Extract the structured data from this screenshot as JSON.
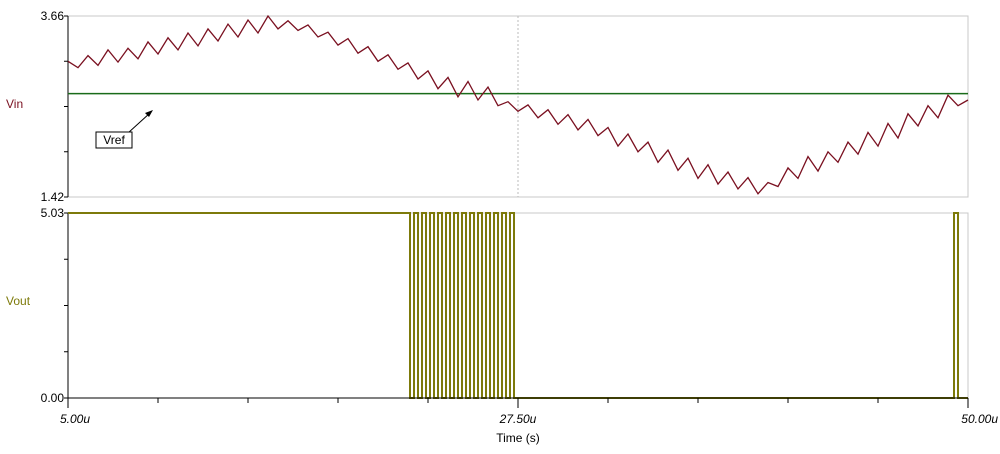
{
  "chart_data": [
    {
      "type": "line",
      "ylabel": "Vin",
      "ylim": [
        1.42,
        3.66
      ],
      "xlim": [
        5.0,
        50.0
      ],
      "x_unit": "u",
      "grid": "x-ticks only, dashed vertical marker at 27.50u",
      "y_tick_labels": [
        "3.66",
        "1.42"
      ],
      "colors": {
        "vin": "#7a1020",
        "vref": "#1a6b1a"
      },
      "series": [
        {
          "x": [
            5.0,
            5.5,
            6.0,
            6.5,
            7.0,
            7.5,
            8.0,
            8.5,
            9.0,
            9.5,
            10.0,
            10.5,
            11.0,
            11.5,
            12.0,
            12.5,
            13.0,
            13.5,
            14.0,
            14.5,
            15.0,
            15.5,
            16.0,
            16.5,
            17.0,
            17.5,
            18.0,
            18.5,
            19.0,
            19.5,
            20.0,
            20.5,
            21.0,
            21.5,
            22.0,
            22.5,
            23.0,
            23.5,
            24.0,
            24.5,
            25.0,
            25.5,
            26.0,
            26.5,
            27.0,
            27.5,
            28.0,
            28.5,
            29.0,
            29.5,
            30.0,
            30.5,
            31.0,
            31.5,
            32.0,
            32.5,
            33.0,
            33.5,
            34.0,
            34.5,
            35.0,
            35.5,
            36.0,
            36.5,
            37.0,
            37.5,
            38.0,
            38.5,
            39.0,
            39.5,
            40.0,
            40.5,
            41.0,
            41.5,
            42.0,
            42.5,
            43.0,
            43.5,
            44.0,
            44.5,
            45.0,
            45.5,
            46.0,
            46.5,
            47.0,
            47.5,
            48.0,
            48.5,
            49.0,
            49.5,
            50.0
          ],
          "values": [
            3.1,
            3.02,
            3.17,
            3.05,
            3.24,
            3.09,
            3.26,
            3.13,
            3.34,
            3.19,
            3.39,
            3.24,
            3.45,
            3.29,
            3.5,
            3.35,
            3.56,
            3.4,
            3.61,
            3.45,
            3.66,
            3.5,
            3.6,
            3.48,
            3.55,
            3.4,
            3.46,
            3.3,
            3.38,
            3.2,
            3.28,
            3.1,
            3.18,
            3.0,
            3.08,
            2.88,
            2.98,
            2.76,
            2.9,
            2.66,
            2.85,
            2.62,
            2.78,
            2.55,
            2.6,
            2.48,
            2.56,
            2.4,
            2.5,
            2.32,
            2.44,
            2.25,
            2.38,
            2.18,
            2.28,
            2.05,
            2.2,
            1.98,
            2.1,
            1.85,
            2.0,
            1.75,
            1.9,
            1.65,
            1.82,
            1.58,
            1.73,
            1.52,
            1.66,
            1.46,
            1.6,
            1.55,
            1.78,
            1.65,
            1.92,
            1.74,
            1.98,
            1.85,
            2.1,
            1.95,
            2.22,
            2.05,
            2.33,
            2.15,
            2.45,
            2.3,
            2.55,
            2.4,
            2.68,
            2.55,
            2.62
          ]
        },
        {
          "name": "Vref",
          "y": 2.7
        }
      ]
    },
    {
      "type": "line",
      "ylabel": "Vout",
      "xlabel": "Time (s)",
      "ylim": [
        0.0,
        5.03
      ],
      "xlim": [
        5.0,
        50.0
      ],
      "y_tick_labels": [
        "5.03",
        "0.00"
      ],
      "x_tick_labels": [
        "5.00u",
        "27.50u",
        "50.00u"
      ],
      "colors": {
        "vout": "#7d7a0a"
      },
      "series": [
        {
          "x": [
            5.0,
            22.1,
            22.1,
            22.3,
            22.3,
            22.5,
            22.5,
            22.7,
            22.7,
            22.9,
            22.9,
            23.1,
            23.1,
            23.3,
            23.3,
            23.5,
            23.5,
            23.7,
            23.7,
            23.9,
            23.9,
            24.1,
            24.1,
            24.3,
            24.3,
            24.5,
            24.5,
            24.7,
            24.7,
            24.9,
            24.9,
            25.1,
            25.1,
            25.3,
            25.3,
            25.5,
            25.5,
            25.7,
            25.7,
            25.9,
            25.9,
            26.1,
            26.1,
            26.3,
            26.3,
            26.5,
            26.5,
            26.7,
            26.7,
            26.9,
            26.9,
            27.1,
            27.1,
            27.3,
            27.3,
            49.3,
            49.3,
            49.5,
            49.5,
            50.0
          ],
          "values": [
            5.03,
            5.03,
            0.0,
            0.0,
            5.03,
            5.03,
            0.0,
            0.0,
            5.03,
            5.03,
            0.0,
            0.0,
            5.03,
            5.03,
            0.0,
            0.0,
            5.03,
            5.03,
            0.0,
            0.0,
            5.03,
            5.03,
            0.0,
            0.0,
            5.03,
            5.03,
            0.0,
            0.0,
            5.03,
            5.03,
            0.0,
            0.0,
            5.03,
            5.03,
            0.0,
            0.0,
            5.03,
            5.03,
            0.0,
            0.0,
            5.03,
            5.03,
            0.0,
            0.0,
            5.03,
            5.03,
            0.0,
            0.0,
            5.03,
            5.03,
            0.0,
            0.0,
            5.03,
            5.03,
            0.0,
            0.0,
            5.03,
            5.03,
            0.0,
            0.0
          ]
        }
      ]
    }
  ]
}
